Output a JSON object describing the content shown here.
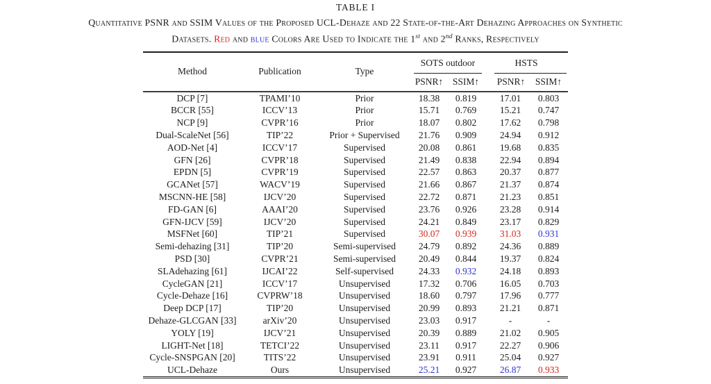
{
  "title": "TABLE I",
  "caption": {
    "line1": "Quantitative PSNR and SSIM Values of the Proposed UCL-Dehaze and 22 State-of-the-Art Dehazing Approaches on Synthetic",
    "line2_parts": {
      "prefix": "Datasets. ",
      "red_word": "Red",
      "mid1": " and ",
      "blue_word": "blue",
      "mid2": " Colors Are Used to Indicate the 1",
      "sup1": "st",
      "mid3": " and 2",
      "sup2": "nd",
      "suffix": " Ranks, Respectively"
    }
  },
  "colors": {
    "rank1_red": "#d0281c",
    "rank2_blue": "#2a35cf",
    "text": "#1c1c1c"
  },
  "table": {
    "col_headers": [
      "Method",
      "Publication",
      "Type"
    ],
    "groups": [
      {
        "label": "SOTS outdoor"
      },
      {
        "label": "HSTS"
      }
    ],
    "metric_headers": [
      "PSNR↑",
      "SSIM↑",
      "PSNR↑",
      "SSIM↑"
    ],
    "rows": [
      {
        "method": "DCP [7]",
        "publication": "TPAMI’10",
        "type": "Prior",
        "values": [
          "18.38",
          "0.819",
          "17.01",
          "0.803"
        ],
        "value_colors": [
          "",
          "",
          "",
          ""
        ]
      },
      {
        "method": "BCCR [55]",
        "publication": "ICCV’13",
        "type": "Prior",
        "values": [
          "15.71",
          "0.769",
          "15.21",
          "0.747"
        ],
        "value_colors": [
          "",
          "",
          "",
          ""
        ]
      },
      {
        "method": "NCP [9]",
        "publication": "CVPR’16",
        "type": "Prior",
        "values": [
          "18.07",
          "0.802",
          "17.62",
          "0.798"
        ],
        "value_colors": [
          "",
          "",
          "",
          ""
        ]
      },
      {
        "method": "Dual-ScaleNet [56]",
        "publication": "TIP’22",
        "type": "Prior + Supervised",
        "values": [
          "21.76",
          "0.909",
          "24.94",
          "0.912"
        ],
        "value_colors": [
          "",
          "",
          "",
          ""
        ]
      },
      {
        "method": "AOD-Net [4]",
        "publication": "ICCV’17",
        "type": "Supervised",
        "values": [
          "20.08",
          "0.861",
          "19.68",
          "0.835"
        ],
        "value_colors": [
          "",
          "",
          "",
          ""
        ]
      },
      {
        "method": "GFN [26]",
        "publication": "CVPR’18",
        "type": "Supervised",
        "values": [
          "21.49",
          "0.838",
          "22.94",
          "0.894"
        ],
        "value_colors": [
          "",
          "",
          "",
          ""
        ]
      },
      {
        "method": "EPDN [5]",
        "publication": "CVPR’19",
        "type": "Supervised",
        "values": [
          "22.57",
          "0.863",
          "20.37",
          "0.877"
        ],
        "value_colors": [
          "",
          "",
          "",
          ""
        ]
      },
      {
        "method": "GCANet [57]",
        "publication": "WACV’19",
        "type": "Supervised",
        "values": [
          "21.66",
          "0.867",
          "21.37",
          "0.874"
        ],
        "value_colors": [
          "",
          "",
          "",
          ""
        ]
      },
      {
        "method": "MSCNN-HE [58]",
        "publication": "IJCV’20",
        "type": "Supervised",
        "values": [
          "22.72",
          "0.871",
          "21.23",
          "0.851"
        ],
        "value_colors": [
          "",
          "",
          "",
          ""
        ]
      },
      {
        "method": "FD-GAN [6]",
        "publication": "AAAI’20",
        "type": "Supervised",
        "values": [
          "23.76",
          "0.926",
          "23.28",
          "0.914"
        ],
        "value_colors": [
          "",
          "",
          "",
          ""
        ]
      },
      {
        "method": "GFN-IJCV [59]",
        "publication": "IJCV’20",
        "type": "Supervised",
        "values": [
          "24.21",
          "0.849",
          "23.17",
          "0.829"
        ],
        "value_colors": [
          "",
          "",
          "",
          ""
        ]
      },
      {
        "method": "MSFNet [60]",
        "publication": "TIP’21",
        "type": "Supervised",
        "values": [
          "30.07",
          "0.939",
          "31.03",
          "0.931"
        ],
        "value_colors": [
          "red",
          "red",
          "red",
          "blue"
        ]
      },
      {
        "method": "Semi-dehazing [31]",
        "publication": "TIP’20",
        "type": "Semi-supervised",
        "values": [
          "24.79",
          "0.892",
          "24.36",
          "0.889"
        ],
        "value_colors": [
          "",
          "",
          "",
          ""
        ]
      },
      {
        "method": "PSD [30]",
        "publication": "CVPR’21",
        "type": "Semi-supervised",
        "values": [
          "20.49",
          "0.844",
          "19.37",
          "0.824"
        ],
        "value_colors": [
          "",
          "",
          "",
          ""
        ]
      },
      {
        "method": "SLAdehazing [61]",
        "publication": "IJCAI’22",
        "type": "Self-supervised",
        "values": [
          "24.33",
          "0.932",
          "24.18",
          "0.893"
        ],
        "value_colors": [
          "",
          "blue",
          "",
          ""
        ]
      },
      {
        "method": "CycleGAN [21]",
        "publication": "ICCV’17",
        "type": "Unsupervised",
        "values": [
          "17.32",
          "0.706",
          "16.05",
          "0.703"
        ],
        "value_colors": [
          "",
          "",
          "",
          ""
        ]
      },
      {
        "method": "Cycle-Dehaze [16]",
        "publication": "CVPRW’18",
        "type": "Unsupervised",
        "values": [
          "18.60",
          "0.797",
          "17.96",
          "0.777"
        ],
        "value_colors": [
          "",
          "",
          "",
          ""
        ]
      },
      {
        "method": "Deep DCP [17]",
        "publication": "TIP’20",
        "type": "Unsupervised",
        "values": [
          "20.99",
          "0.893",
          "21.21",
          "0.871"
        ],
        "value_colors": [
          "",
          "",
          "",
          ""
        ]
      },
      {
        "method": "Dehaze-GLCGAN [33]",
        "publication": "arXiv’20",
        "type": "Unsupervised",
        "values": [
          "23.03",
          "0.917",
          "-",
          "-"
        ],
        "value_colors": [
          "",
          "",
          "",
          ""
        ]
      },
      {
        "method": "YOLY [19]",
        "publication": "IJCV’21",
        "type": "Unsupervised",
        "values": [
          "20.39",
          "0.889",
          "21.02",
          "0.905"
        ],
        "value_colors": [
          "",
          "",
          "",
          ""
        ]
      },
      {
        "method": "LIGHT-Net [18]",
        "publication": "TETCI’22",
        "type": "Unsupervised",
        "values": [
          "23.11",
          "0.917",
          "22.27",
          "0.906"
        ],
        "value_colors": [
          "",
          "",
          "",
          ""
        ]
      },
      {
        "method": "Cycle-SNSPGAN [20]",
        "publication": "TITS’22",
        "type": "Unsupervised",
        "values": [
          "23.91",
          "0.911",
          "25.04",
          "0.927"
        ],
        "value_colors": [
          "",
          "",
          "",
          ""
        ]
      },
      {
        "method": "UCL-Dehaze",
        "publication": "Ours",
        "type": "Unsupervised",
        "values": [
          "25.21",
          "0.927",
          "26.87",
          "0.933"
        ],
        "value_colors": [
          "blue",
          "",
          "blue",
          "red"
        ]
      }
    ]
  }
}
